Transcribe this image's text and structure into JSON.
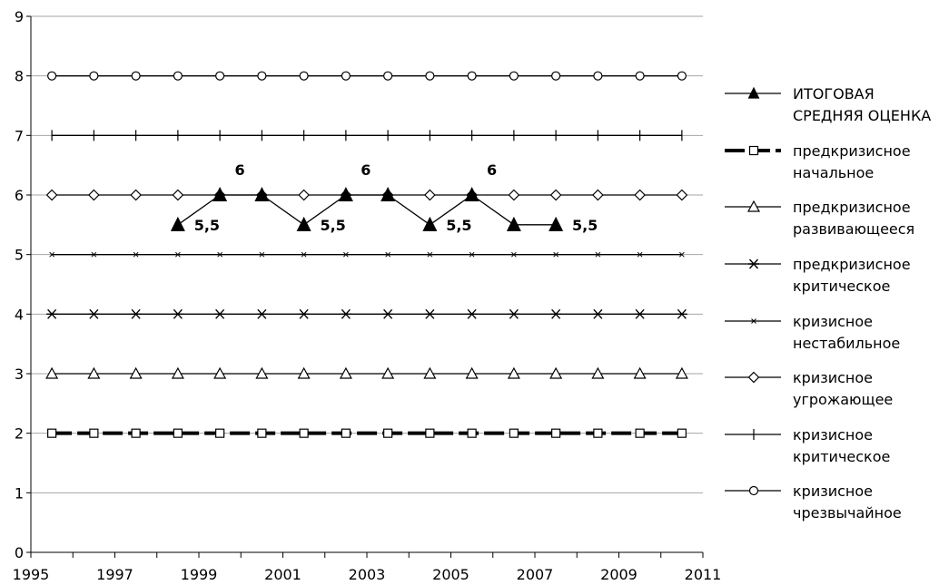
{
  "chart_data": {
    "type": "line",
    "title": "",
    "xlabel": "",
    "ylabel": "",
    "xlim": [
      1995,
      2011
    ],
    "ylim": [
      0,
      9
    ],
    "x_ticks": [
      "1995",
      "1997",
      "1999",
      "2001",
      "2003",
      "2005",
      "2007",
      "2009",
      "2011"
    ],
    "y_ticks": [
      "0",
      "1",
      "2",
      "3",
      "4",
      "5",
      "6",
      "7",
      "8",
      "9"
    ],
    "grid": "horizontal",
    "legend_position": "right",
    "x": [
      1995.5,
      1996.5,
      1997.5,
      1998.5,
      1999.5,
      2000.5,
      2001.5,
      2002.5,
      2003.5,
      2004.5,
      2005.5,
      2006.5,
      2007.5,
      2008.5,
      2009.5,
      2010.5
    ],
    "series": [
      {
        "name": "ИТОГОВАЯ СРЕДНЯЯ ОЦЕНКА",
        "x": [
          1998.5,
          1999.5,
          2000.5,
          2001.5,
          2002.5,
          2003.5,
          2004.5,
          2005.5,
          2006.5,
          2007.5
        ],
        "values": [
          5.5,
          6,
          6,
          5.5,
          6,
          6,
          5.5,
          6,
          5.5,
          5.5
        ],
        "marker": "filled-triangle"
      },
      {
        "name": "предкризисное начальное",
        "value": 2,
        "marker": "square",
        "style": "thick-dashed"
      },
      {
        "name": "предкризисное развивающееся",
        "value": 3,
        "marker": "triangle"
      },
      {
        "name": "предкризисное критическое",
        "value": 4,
        "marker": "asterisk"
      },
      {
        "name": "кризисное нестабильное",
        "value": 5,
        "marker": "small-x"
      },
      {
        "name": "кризисное угрожающее",
        "value": 6,
        "marker": "diamond"
      },
      {
        "name": "кризисное критическое",
        "value": 7,
        "marker": "plus"
      },
      {
        "name": "кризисное чрезвычайное",
        "value": 8,
        "marker": "circle"
      }
    ],
    "legend": [
      {
        "lines": [
          "ИТОГОВАЯ",
          "СРЕДНЯЯ ОЦЕНКА"
        ]
      },
      {
        "lines": [
          "предкризисное",
          "начальное"
        ]
      },
      {
        "lines": [
          "предкризисное",
          "развивающееся"
        ]
      },
      {
        "lines": [
          "предкризисное",
          "критическое"
        ]
      },
      {
        "lines": [
          "кризисное",
          "нестабильное"
        ]
      },
      {
        "lines": [
          "кризисное",
          "угрожающее"
        ]
      },
      {
        "lines": [
          "кризисное",
          "критическое"
        ]
      },
      {
        "lines": [
          "кризисное",
          "чрезвычайное"
        ]
      }
    ],
    "annotations": [
      {
        "text": "5,5",
        "x": 1998.5,
        "y": 5.5
      },
      {
        "text": "6",
        "x": 1999.5,
        "y": 6
      },
      {
        "text": "5,5",
        "x": 2001.5,
        "y": 5.5
      },
      {
        "text": "6",
        "x": 2002.5,
        "y": 6
      },
      {
        "text": "5,5",
        "x": 2004.5,
        "y": 5.5
      },
      {
        "text": "6",
        "x": 2005.5,
        "y": 6
      },
      {
        "text": "5,5",
        "x": 2007.5,
        "y": 5.5
      }
    ]
  }
}
